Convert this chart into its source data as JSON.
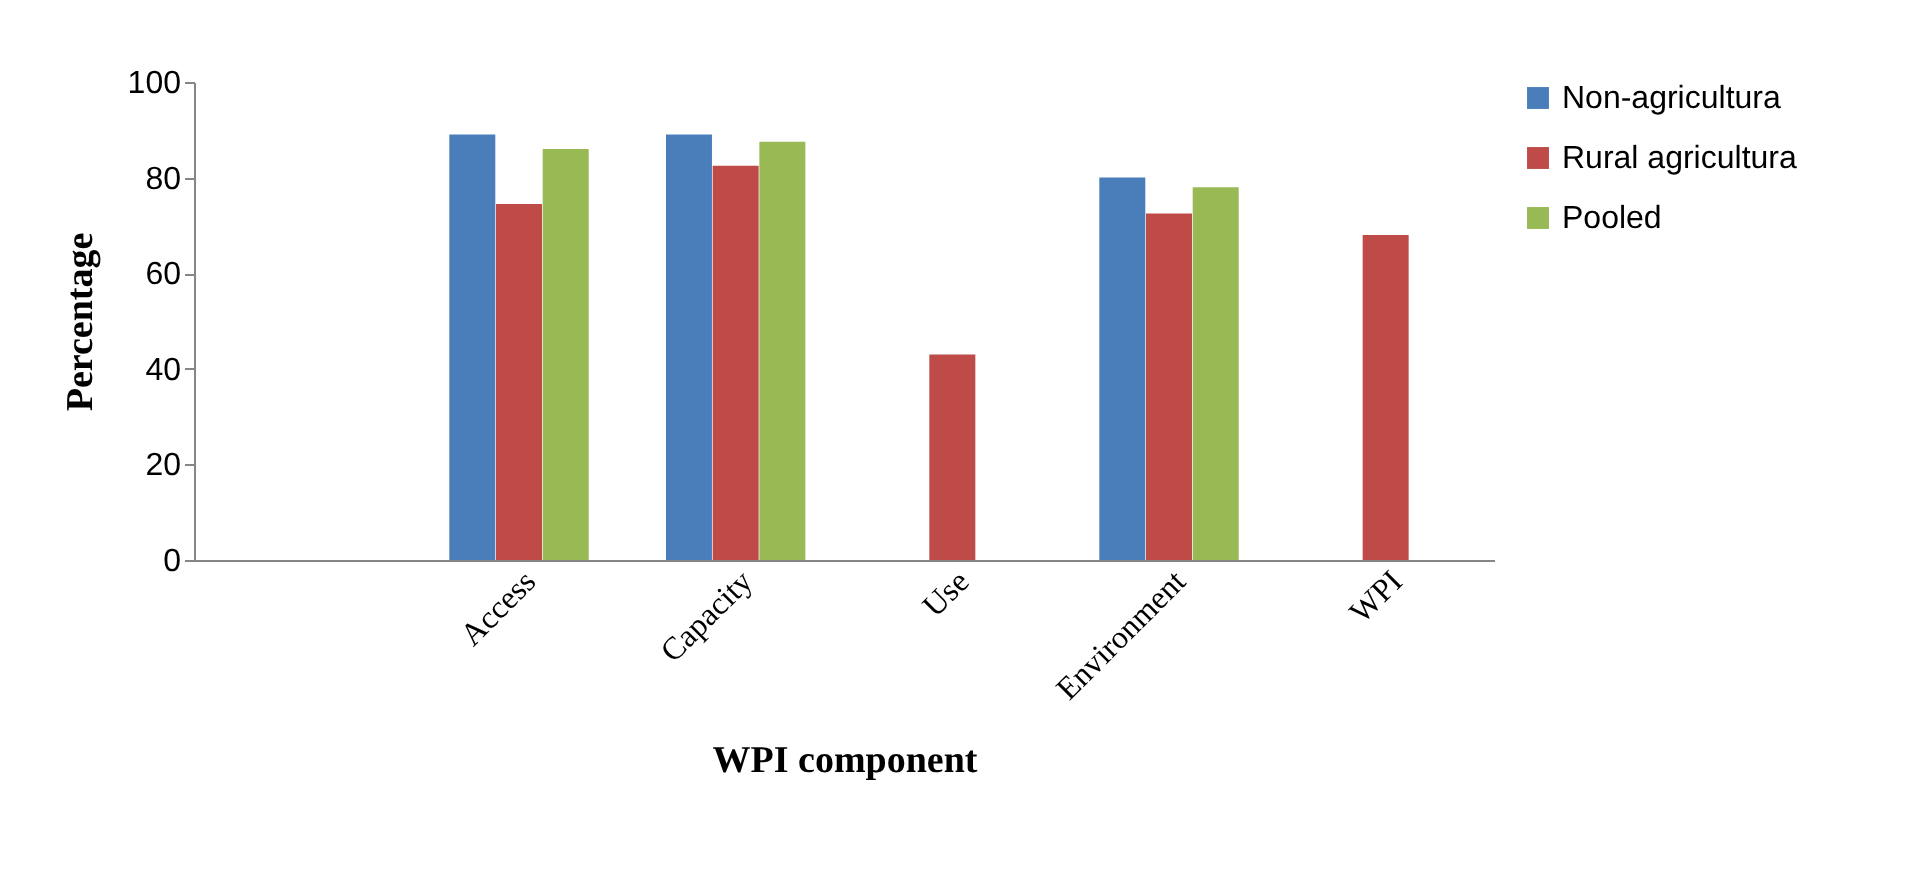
{
  "chart_data": {
    "type": "bar",
    "xlabel": "WPI component",
    "ylabel": "Percentage",
    "categories": [
      null,
      "Access",
      "Capacity",
      "Use",
      "Environment",
      "WPI"
    ],
    "series": [
      {
        "name": "Non-agricultura",
        "color": "#4a7ebb",
        "values": [
          null,
          89,
          89,
          null,
          80,
          null
        ]
      },
      {
        "name": "Rural agricultura",
        "color": "#be4b48",
        "values": [
          null,
          74.5,
          82.5,
          43,
          72.5,
          68
        ]
      },
      {
        "name": "Pooled",
        "color": "#98b954",
        "values": [
          null,
          86,
          87.5,
          null,
          78,
          null
        ]
      }
    ],
    "ylim": [
      0,
      100
    ],
    "yticks": [
      0,
      20,
      40,
      60,
      80,
      100
    ],
    "grid": false,
    "legend": "right"
  }
}
